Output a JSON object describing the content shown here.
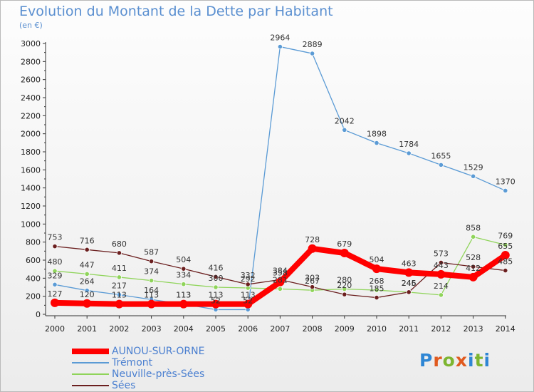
{
  "title": "Evolution du Montant de la Dette par Habitant",
  "subtitle": "(en €)",
  "logo": {
    "text": "Proxiti",
    "letter_colors": [
      "#2e86d4",
      "#e05a1f",
      "#7db530",
      "#e05a1f",
      "#2e86d4",
      "#7db530",
      "#2e86d4"
    ]
  },
  "chart_data": {
    "type": "line",
    "title": "Evolution du Montant de la Dette par Habitant",
    "ylabel": "(en €)",
    "xlabel": "",
    "x": [
      "2000",
      "2001",
      "2002",
      "2003",
      "2004",
      "2005",
      "2006",
      "2007",
      "2008",
      "2009",
      "2010",
      "2011",
      "2012",
      "2013",
      "2014"
    ],
    "ylim": [
      0,
      3000
    ],
    "yticks": [
      0,
      200,
      400,
      600,
      800,
      1000,
      1200,
      1400,
      1600,
      1800,
      2000,
      2200,
      2400,
      2600,
      2800,
      3000
    ],
    "grid": false,
    "legend_position": "bottom-left",
    "series": [
      {
        "name": "AUNOU-SUR-ORNE",
        "color": "#ff0000",
        "values": [
          127,
          120,
          113,
          113,
          113,
          113,
          113,
          358,
          728,
          679,
          504,
          463,
          443,
          412,
          655
        ],
        "labels": [
          "127",
          "120",
          "113",
          "113",
          "113",
          "113",
          "113",
          "358",
          "728",
          "679",
          "504",
          "463",
          "443",
          "412",
          "655"
        ]
      },
      {
        "name": "Trémont",
        "color": "#5b9bd5",
        "values": [
          329,
          264,
          217,
          164,
          113,
          52,
          52,
          2964,
          2889,
          2042,
          1898,
          1784,
          1655,
          1529,
          1370
        ],
        "labels": [
          "329",
          "264",
          "217",
          "164",
          "113",
          "52",
          "52",
          "2964",
          "2889",
          "2042",
          "1898",
          "1784",
          "1655",
          "1529",
          "1370"
        ]
      },
      {
        "name": "Neuville-près-Sées",
        "color": "#8fd45a",
        "values": [
          480,
          447,
          411,
          374,
          334,
          300,
          292,
          281,
          267,
          280,
          268,
          245,
          214,
          858,
          769
        ],
        "labels": [
          "480",
          "447",
          "411",
          "374",
          "334",
          "300",
          "292",
          "281",
          "267",
          "280",
          "268",
          "245",
          "214",
          "858",
          "769"
        ]
      },
      {
        "name": "Sées",
        "color": "#6b1f1f",
        "values": [
          753,
          716,
          680,
          587,
          504,
          416,
          332,
          384,
          303,
          220,
          185,
          246,
          573,
          528,
          485
        ],
        "labels": [
          "753",
          "716",
          "680",
          "587",
          "504",
          "416",
          "332",
          "384",
          "303",
          "220",
          "185",
          "246",
          "573",
          "528",
          "485"
        ]
      }
    ]
  }
}
